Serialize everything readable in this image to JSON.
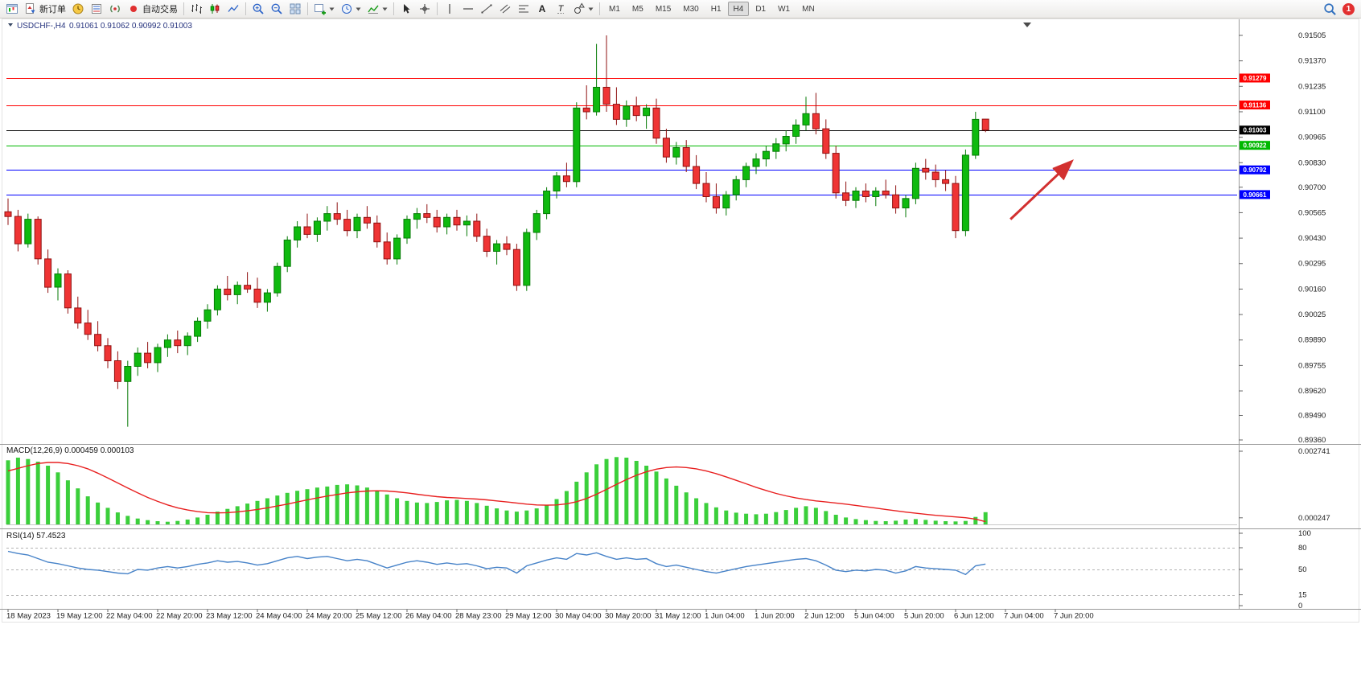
{
  "toolbar": {
    "new_order_label": "新订单",
    "autotrading_label": "自动交易",
    "text_tool_glyph": "A",
    "label_tool_glyph": "T",
    "timeframes": [
      "M1",
      "M5",
      "M15",
      "M30",
      "H1",
      "H4",
      "D1",
      "W1",
      "MN"
    ],
    "active_timeframe": "H4",
    "notification_count": "1"
  },
  "chart": {
    "title": "USDCHF-,H4",
    "quote_line": "0.91061 0.91062 0.90992 0.91003"
  },
  "colors": {
    "up": "#0fba0f",
    "up_stroke": "#067a06",
    "down": "#ef3434",
    "down_stroke": "#8f1010",
    "macd_hist": "#3bcf3b",
    "macd_signal": "#e82020",
    "rsi": "#4682c8",
    "arrow": "#d23030"
  },
  "chart_data": [
    {
      "type": "candlestick",
      "title": "USDCHF-,H4",
      "ohlc_quote": {
        "open": 0.91061,
        "high": 0.91062,
        "low": 0.90992,
        "close": 0.91003
      },
      "ylim": [
        0.8936,
        0.91505
      ],
      "y_ticks": [
        "0.91505",
        "0.91370",
        "0.91235",
        "0.91100",
        "0.90965",
        "0.90830",
        "0.90700",
        "0.90565",
        "0.90430",
        "0.90295",
        "0.90160",
        "0.90025",
        "0.89890",
        "0.89755",
        "0.89620",
        "0.89490",
        "0.89360"
      ],
      "x_labels": [
        "18 May 2023",
        "19 May 12:00",
        "22 May 04:00",
        "22 May 20:00",
        "23 May 12:00",
        "24 May 04:00",
        "24 May 20:00",
        "25 May 12:00",
        "26 May 04:00",
        "28 May 23:00",
        "29 May 12:00",
        "30 May 04:00",
        "30 May 20:00",
        "31 May 12:00",
        "1 Jun 04:00",
        "1 Jun 20:00",
        "2 Jun 12:00",
        "5 Jun 04:00",
        "5 Jun 20:00",
        "6 Jun 12:00",
        "7 Jun 04:00",
        "7 Jun 20:00"
      ],
      "levels": [
        {
          "price": 0.91279,
          "label": "0.91279",
          "color": "#ff0000"
        },
        {
          "price": 0.91136,
          "label": "0.91136",
          "color": "#ff0000"
        },
        {
          "price": 0.91003,
          "label": "0.91003",
          "color": "#000000",
          "role": "bid"
        },
        {
          "price": 0.90922,
          "label": "0.90922",
          "color": "#00b800"
        },
        {
          "price": 0.90792,
          "label": "0.90792",
          "color": "#0000ff"
        },
        {
          "price": 0.90661,
          "label": "0.90661",
          "color": "#0000ff"
        }
      ],
      "annotations": [
        {
          "type": "arrow",
          "color": "#d23030",
          "from": {
            "index": 100.5,
            "price": 0.9053
          },
          "to": {
            "index": 106.5,
            "price": 0.9083
          }
        }
      ],
      "candles": [
        [
          0.9057,
          0.9064,
          0.905,
          0.90545
        ],
        [
          0.90545,
          0.9058,
          0.9036,
          0.904
        ],
        [
          0.904,
          0.9056,
          0.9038,
          0.9053
        ],
        [
          0.9053,
          0.90545,
          0.9029,
          0.9032
        ],
        [
          0.9032,
          0.9037,
          0.9014,
          0.9017
        ],
        [
          0.9017,
          0.9027,
          0.901,
          0.9024
        ],
        [
          0.9024,
          0.9026,
          0.9003,
          0.9006
        ],
        [
          0.9006,
          0.9012,
          0.8995,
          0.8998
        ],
        [
          0.8998,
          0.9005,
          0.8989,
          0.8992
        ],
        [
          0.8992,
          0.8999,
          0.8983,
          0.8986
        ],
        [
          0.8986,
          0.899,
          0.8974,
          0.8978
        ],
        [
          0.8978,
          0.8983,
          0.8963,
          0.8967
        ],
        [
          0.8967,
          0.8978,
          0.8943,
          0.8975
        ],
        [
          0.8975,
          0.8985,
          0.897,
          0.8982
        ],
        [
          0.8982,
          0.8988,
          0.8974,
          0.8977
        ],
        [
          0.8977,
          0.8987,
          0.8972,
          0.8985
        ],
        [
          0.8985,
          0.8992,
          0.898,
          0.8989
        ],
        [
          0.8989,
          0.8994,
          0.8982,
          0.8986
        ],
        [
          0.8986,
          0.8993,
          0.8981,
          0.8991
        ],
        [
          0.8991,
          0.9001,
          0.8988,
          0.8999
        ],
        [
          0.8999,
          0.9008,
          0.8995,
          0.9005
        ],
        [
          0.9005,
          0.9018,
          0.9002,
          0.9016
        ],
        [
          0.9016,
          0.9023,
          0.901,
          0.9013
        ],
        [
          0.9013,
          0.902,
          0.9008,
          0.9018
        ],
        [
          0.9018,
          0.9025,
          0.9014,
          0.9016
        ],
        [
          0.9016,
          0.9022,
          0.9006,
          0.9009
        ],
        [
          0.9009,
          0.9016,
          0.9004,
          0.9014
        ],
        [
          0.9014,
          0.903,
          0.9012,
          0.9028
        ],
        [
          0.9028,
          0.9044,
          0.9025,
          0.9042
        ],
        [
          0.9042,
          0.9052,
          0.9038,
          0.9049
        ],
        [
          0.9049,
          0.9056,
          0.9043,
          0.9045
        ],
        [
          0.9045,
          0.9054,
          0.9041,
          0.9052
        ],
        [
          0.9052,
          0.906,
          0.9047,
          0.9056
        ],
        [
          0.9056,
          0.9062,
          0.905,
          0.9053
        ],
        [
          0.9053,
          0.9058,
          0.9044,
          0.9047
        ],
        [
          0.9047,
          0.9056,
          0.9043,
          0.9054
        ],
        [
          0.9054,
          0.906,
          0.9048,
          0.9051
        ],
        [
          0.9051,
          0.9055,
          0.9038,
          0.9041
        ],
        [
          0.9041,
          0.9046,
          0.9029,
          0.9032
        ],
        [
          0.9032,
          0.9045,
          0.9029,
          0.9043
        ],
        [
          0.9043,
          0.9055,
          0.904,
          0.9053
        ],
        [
          0.9053,
          0.9059,
          0.9048,
          0.9056
        ],
        [
          0.9056,
          0.9061,
          0.9051,
          0.9054
        ],
        [
          0.9054,
          0.9058,
          0.9046,
          0.9049
        ],
        [
          0.9049,
          0.9056,
          0.9045,
          0.9054
        ],
        [
          0.9054,
          0.9058,
          0.9047,
          0.905
        ],
        [
          0.905,
          0.9055,
          0.9044,
          0.9052
        ],
        [
          0.9052,
          0.9056,
          0.9041,
          0.9044
        ],
        [
          0.9044,
          0.9048,
          0.9033,
          0.9036
        ],
        [
          0.9036,
          0.9042,
          0.9029,
          0.904
        ],
        [
          0.904,
          0.9044,
          0.9034,
          0.9037
        ],
        [
          0.9037,
          0.904,
          0.9015,
          0.9018
        ],
        [
          0.9018,
          0.9048,
          0.9015,
          0.9046
        ],
        [
          0.9046,
          0.9058,
          0.9042,
          0.9056
        ],
        [
          0.9056,
          0.907,
          0.9053,
          0.9068
        ],
        [
          0.9068,
          0.9078,
          0.9064,
          0.9076
        ],
        [
          0.9076,
          0.9083,
          0.907,
          0.9073
        ],
        [
          0.9073,
          0.9115,
          0.907,
          0.9112
        ],
        [
          0.9112,
          0.9124,
          0.9106,
          0.911
        ],
        [
          0.911,
          0.9146,
          0.9108,
          0.9123
        ],
        [
          0.9123,
          0.91505,
          0.911,
          0.9114
        ],
        [
          0.9114,
          0.9123,
          0.9103,
          0.9106
        ],
        [
          0.9106,
          0.9116,
          0.9102,
          0.9113
        ],
        [
          0.9113,
          0.9118,
          0.9105,
          0.9108
        ],
        [
          0.9108,
          0.9114,
          0.9101,
          0.9112
        ],
        [
          0.9112,
          0.9117,
          0.9093,
          0.9096
        ],
        [
          0.9096,
          0.9101,
          0.9083,
          0.9086
        ],
        [
          0.9086,
          0.9094,
          0.9082,
          0.9091
        ],
        [
          0.9091,
          0.9095,
          0.9078,
          0.9081
        ],
        [
          0.9081,
          0.9087,
          0.9069,
          0.9072
        ],
        [
          0.9072,
          0.9078,
          0.9062,
          0.9065
        ],
        [
          0.9065,
          0.9072,
          0.9056,
          0.9059
        ],
        [
          0.9059,
          0.9068,
          0.9055,
          0.9066
        ],
        [
          0.9066,
          0.9076,
          0.9063,
          0.9074
        ],
        [
          0.9074,
          0.9083,
          0.907,
          0.9081
        ],
        [
          0.9081,
          0.9088,
          0.9077,
          0.9085
        ],
        [
          0.9085,
          0.9092,
          0.9081,
          0.9089
        ],
        [
          0.9089,
          0.9096,
          0.9085,
          0.9093
        ],
        [
          0.9093,
          0.91,
          0.9089,
          0.9097
        ],
        [
          0.9097,
          0.9106,
          0.9093,
          0.9103
        ],
        [
          0.9103,
          0.9118,
          0.91,
          0.9109
        ],
        [
          0.9109,
          0.912,
          0.9098,
          0.9101
        ],
        [
          0.9101,
          0.9106,
          0.9085,
          0.9088
        ],
        [
          0.9088,
          0.9092,
          0.9064,
          0.9067
        ],
        [
          0.9067,
          0.9073,
          0.906,
          0.9063
        ],
        [
          0.9063,
          0.907,
          0.9059,
          0.9068
        ],
        [
          0.9068,
          0.9072,
          0.9062,
          0.9065
        ],
        [
          0.9065,
          0.907,
          0.906,
          0.9068
        ],
        [
          0.9068,
          0.9074,
          0.9064,
          0.9066
        ],
        [
          0.9066,
          0.9071,
          0.9056,
          0.9059
        ],
        [
          0.9059,
          0.9066,
          0.9054,
          0.9064
        ],
        [
          0.9064,
          0.9083,
          0.9061,
          0.908
        ],
        [
          0.908,
          0.9085,
          0.9074,
          0.9078
        ],
        [
          0.9078,
          0.9082,
          0.907,
          0.9074
        ],
        [
          0.9074,
          0.9079,
          0.9068,
          0.9072
        ],
        [
          0.9072,
          0.9076,
          0.9043,
          0.9047
        ],
        [
          0.9047,
          0.909,
          0.9044,
          0.9087
        ],
        [
          0.9087,
          0.911,
          0.9085,
          0.9106
        ],
        [
          0.91061,
          0.91062,
          0.90992,
          0.91003
        ]
      ]
    },
    {
      "type": "bar",
      "name": "MACD",
      "params": [
        12,
        26,
        9
      ],
      "label": "MACD(12,26,9) 0.000459 0.000103",
      "current": {
        "macd": 0.000459,
        "signal": 0.000103
      },
      "ylim": [
        0,
        0.002741
      ],
      "y_ticks": [
        "0.002741",
        "0.000247"
      ],
      "histogram": [
        0.0024,
        0.0025,
        0.00245,
        0.00235,
        0.0022,
        0.00195,
        0.00165,
        0.00135,
        0.00105,
        0.00082,
        0.00062,
        0.00045,
        0.00032,
        0.00022,
        0.00016,
        0.00012,
        0.0001,
        0.00013,
        0.00018,
        0.00026,
        0.00036,
        0.00048,
        0.00058,
        0.00068,
        0.00078,
        0.00088,
        0.00098,
        0.00108,
        0.00118,
        0.00126,
        0.00132,
        0.00138,
        0.00142,
        0.00148,
        0.0015,
        0.00146,
        0.00138,
        0.00126,
        0.00112,
        0.00098,
        0.00088,
        0.00082,
        0.0008,
        0.00084,
        0.0009,
        0.00092,
        0.00088,
        0.0008,
        0.0007,
        0.0006,
        0.00052,
        0.00048,
        0.00052,
        0.0006,
        0.00072,
        0.00095,
        0.00125,
        0.0016,
        0.00195,
        0.00225,
        0.00245,
        0.00252,
        0.0025,
        0.00238,
        0.0022,
        0.00198,
        0.00172,
        0.00145,
        0.0012,
        0.00098,
        0.0008,
        0.00064,
        0.00052,
        0.00044,
        0.0004,
        0.00038,
        0.0004,
        0.00046,
        0.00054,
        0.00062,
        0.00068,
        0.00062,
        0.0005,
        0.00036,
        0.00026,
        0.0002,
        0.00016,
        0.00013,
        0.00012,
        0.00014,
        0.00018,
        0.0002,
        0.00017,
        0.00014,
        0.00012,
        0.00011,
        0.00013,
        0.00028,
        0.000459
      ],
      "signal": [
        0.002,
        0.0021,
        0.0022,
        0.00228,
        0.00232,
        0.00232,
        0.00228,
        0.0022,
        0.00208,
        0.00192,
        0.00174,
        0.00155,
        0.00136,
        0.00118,
        0.00101,
        0.00086,
        0.00073,
        0.00062,
        0.00054,
        0.00048,
        0.00044,
        0.00043,
        0.00044,
        0.00047,
        0.00051,
        0.00056,
        0.00062,
        0.00069,
        0.00076,
        0.00084,
        0.00092,
        0.00099,
        0.00106,
        0.00112,
        0.00118,
        0.00122,
        0.00125,
        0.00126,
        0.00125,
        0.00122,
        0.00118,
        0.00113,
        0.00108,
        0.00104,
        0.00101,
        0.00099,
        0.00097,
        0.00095,
        0.00092,
        0.00088,
        0.00084,
        0.0008,
        0.00076,
        0.00073,
        0.00072,
        0.00073,
        0.00077,
        0.00085,
        0.00097,
        0.00113,
        0.00131,
        0.0015,
        0.00168,
        0.00184,
        0.00197,
        0.00207,
        0.00213,
        0.00215,
        0.00213,
        0.00208,
        0.002,
        0.0019,
        0.00178,
        0.00165,
        0.00152,
        0.00139,
        0.00127,
        0.00116,
        0.00107,
        0.00099,
        0.00093,
        0.00088,
        0.00084,
        0.0008,
        0.00076,
        0.00071,
        0.00066,
        0.00061,
        0.00056,
        0.00051,
        0.00046,
        0.00042,
        0.00038,
        0.00034,
        0.00031,
        0.00028,
        0.00025,
        0.0002,
        0.000103
      ]
    },
    {
      "type": "line",
      "name": "RSI",
      "params": [
        14
      ],
      "label": "RSI(14) 57.4523",
      "current": 57.4523,
      "ylim": [
        0,
        100
      ],
      "y_ticks": [
        "100",
        "80",
        "50",
        "15",
        "0"
      ],
      "levels": [
        80,
        50,
        15
      ],
      "color": "#4682c8",
      "values": [
        75,
        72,
        70,
        65,
        60,
        58,
        55,
        52,
        50,
        49,
        47,
        45,
        44,
        50,
        49,
        52,
        54,
        52,
        54,
        57,
        59,
        62,
        60,
        61,
        59,
        56,
        58,
        62,
        66,
        68,
        65,
        67,
        68,
        65,
        62,
        64,
        62,
        57,
        52,
        56,
        60,
        62,
        60,
        57,
        59,
        57,
        58,
        55,
        51,
        53,
        52,
        45,
        55,
        59,
        63,
        66,
        64,
        72,
        70,
        73,
        68,
        64,
        66,
        64,
        65,
        58,
        54,
        56,
        53,
        50,
        47,
        45,
        48,
        51,
        54,
        56,
        58,
        60,
        62,
        64,
        65,
        62,
        56,
        49,
        47,
        49,
        48,
        50,
        49,
        45,
        48,
        54,
        52,
        51,
        50,
        49,
        43,
        55,
        57.4523
      ]
    }
  ]
}
